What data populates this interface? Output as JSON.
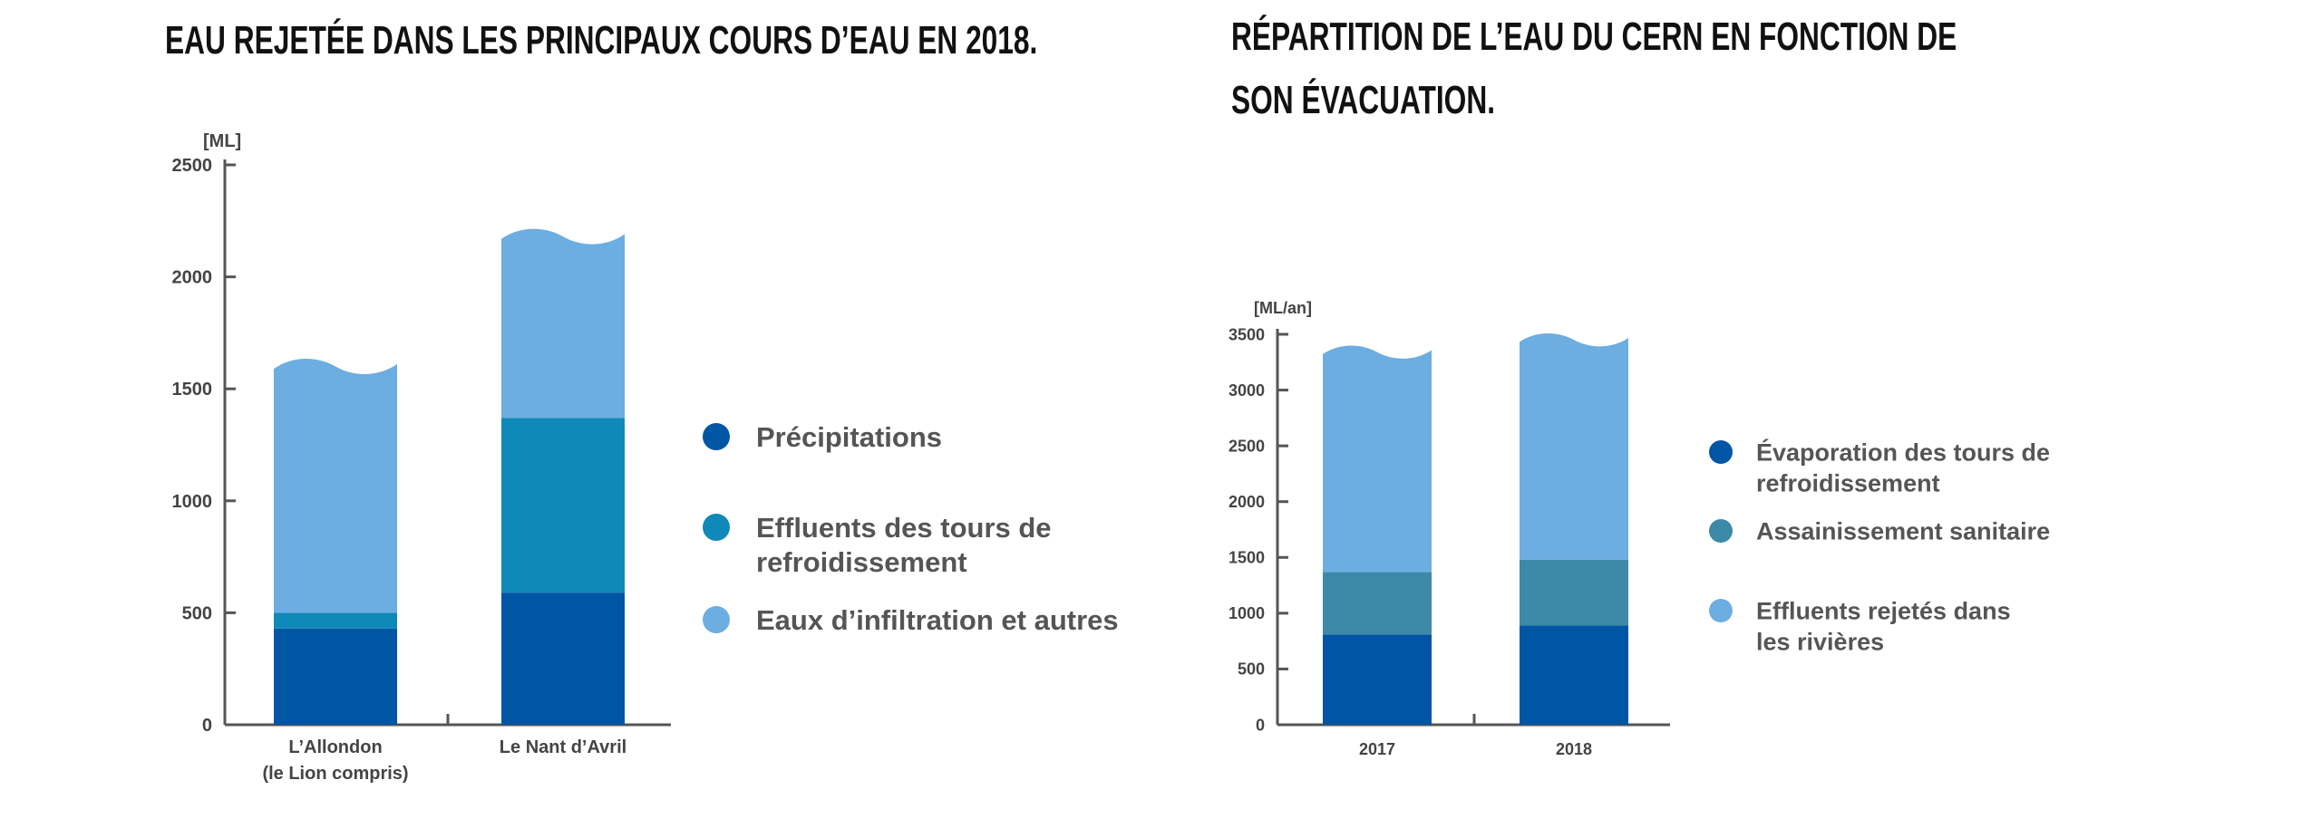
{
  "chart_data": [
    {
      "type": "bar",
      "stacked": true,
      "title": "Eau rejetée dans les principaux cours d’eau en 2018.",
      "unit_label": "[ML]",
      "ylim": [
        0,
        2500
      ],
      "y_ticks": [
        0,
        500,
        1000,
        1500,
        2000,
        2500
      ],
      "categories": [
        {
          "lines": [
            "L’Allondon",
            "(le Lion compris)"
          ]
        },
        {
          "lines": [
            "Le Nant d’Avril"
          ]
        }
      ],
      "series": [
        {
          "name_lines": [
            "Précipitations"
          ],
          "color": "#0055a5",
          "values": [
            430,
            590
          ]
        },
        {
          "name_lines": [
            "Effluents des tours de",
            "refroidissement"
          ],
          "color": "#0f89b7",
          "values": [
            70,
            780
          ]
        },
        {
          "name_lines": [
            "Eaux d’infiltration et autres"
          ],
          "color": "#6cade2",
          "values": [
            1100,
            810
          ]
        }
      ],
      "grid": false,
      "legend": "right"
    },
    {
      "type": "bar",
      "stacked": true,
      "title": "Répartition de l’eau du CERN en fonction de son évacuation.",
      "title_lines": [
        "Répartition de l’eau du CERN en fonction de",
        "son évacuation."
      ],
      "unit_label": "[ML/an]",
      "ylim": [
        0,
        3500
      ],
      "y_ticks": [
        0,
        500,
        1000,
        1500,
        2000,
        2500,
        3000,
        3500
      ],
      "categories": [
        {
          "lines": [
            "2017"
          ]
        },
        {
          "lines": [
            "2018"
          ]
        }
      ],
      "series": [
        {
          "name_lines": [
            "Évaporation des tours de",
            "refroidissement"
          ],
          "color": "#0055a5",
          "values": [
            810,
            890
          ]
        },
        {
          "name_lines": [
            "Assainissement sanitaire"
          ],
          "color": "#3d89a8",
          "values": [
            560,
            590
          ]
        },
        {
          "name_lines": [
            "Effluents rejetés dans",
            "les rivières"
          ],
          "color": "#6cade2",
          "values": [
            1970,
            1970
          ]
        }
      ],
      "grid": false,
      "legend": "right"
    }
  ]
}
